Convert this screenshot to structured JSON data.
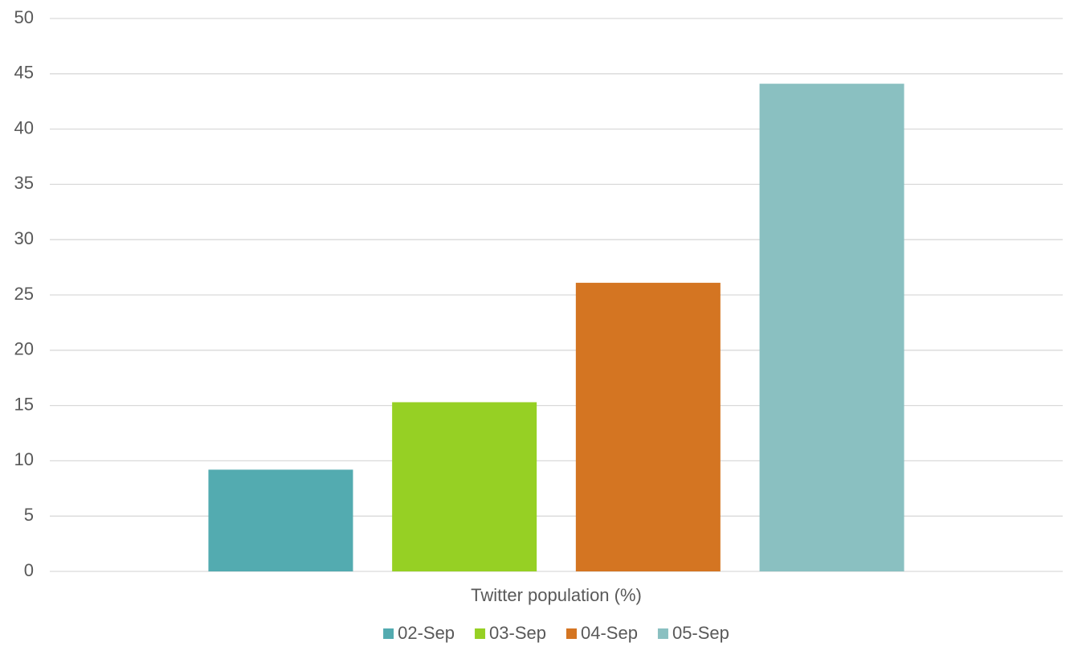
{
  "chart_data": {
    "type": "bar",
    "categories": [
      "Twitter population (%)"
    ],
    "series": [
      {
        "name": "02-Sep",
        "color": "#53abb0",
        "values": [
          9.2
        ]
      },
      {
        "name": "03-Sep",
        "color": "#96d024",
        "values": [
          15.3
        ]
      },
      {
        "name": "04-Sep",
        "color": "#d47522",
        "values": [
          26.1
        ]
      },
      {
        "name": "05-Sep",
        "color": "#8ac0c1",
        "values": [
          44.1
        ]
      }
    ],
    "ylim": [
      0,
      50
    ],
    "yticks": [
      0,
      5,
      10,
      15,
      20,
      25,
      30,
      35,
      40,
      45,
      50
    ],
    "grid": true,
    "legend": "bottom"
  }
}
